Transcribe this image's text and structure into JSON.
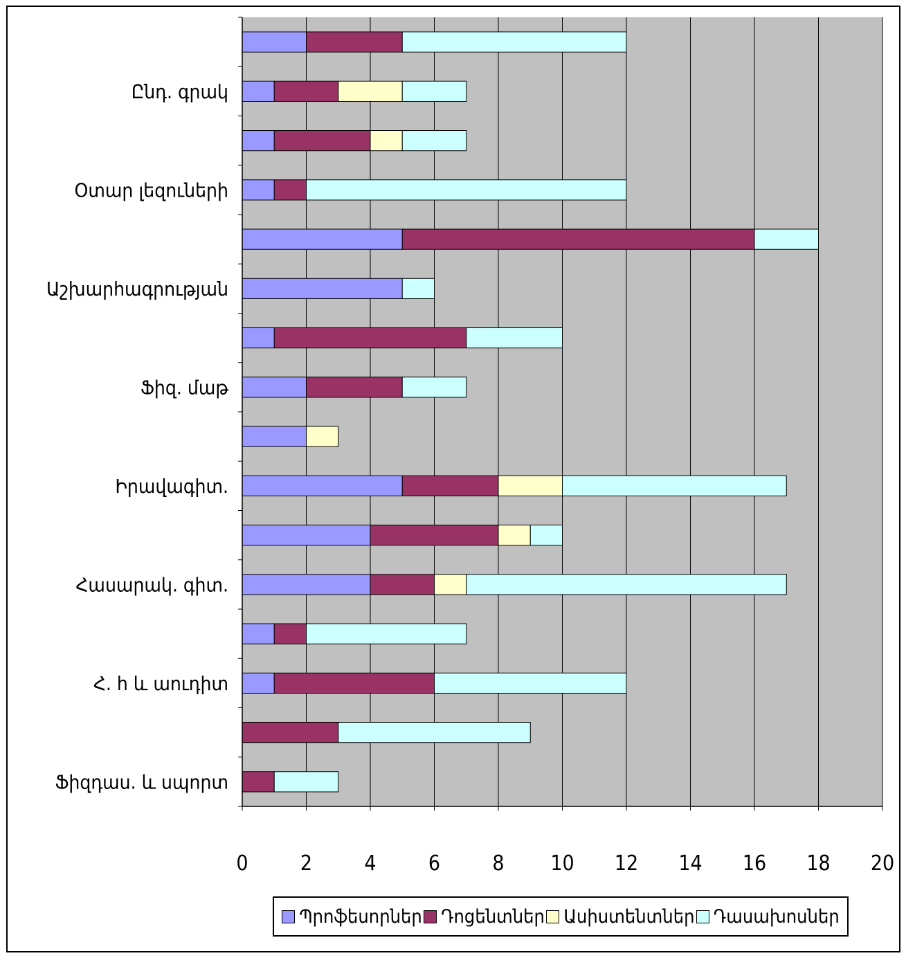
{
  "chart_data": {
    "type": "bar",
    "orientation": "horizontal",
    "stacked": true,
    "categories": [
      "Ֆիզդաս. և սպորտ",
      "",
      "Հ. h և աուդիտ",
      "",
      "Հասարակ. գիտ.",
      "",
      "Իրավագիտ.",
      "",
      "Ֆիզ. մաթ",
      "",
      "Աշխարհագրության",
      "",
      "Օտար լեզուների",
      "",
      "Ընդ. գրակ",
      ""
    ],
    "series": [
      {
        "name": "Պրոֆեսորներ",
        "color": "#9999ff",
        "values": [
          0,
          0,
          1,
          1,
          4,
          4,
          5,
          2,
          2,
          1,
          5,
          5,
          1,
          1,
          1,
          2
        ]
      },
      {
        "name": "Դոցենտներ",
        "color": "#993366",
        "values": [
          1,
          3,
          5,
          1,
          2,
          4,
          3,
          0,
          3,
          6,
          0,
          11,
          1,
          3,
          2,
          3
        ]
      },
      {
        "name": "Ասիստենտներ",
        "color": "#ffffcc",
        "values": [
          0,
          0,
          0,
          0,
          1,
          1,
          2,
          1,
          0,
          0,
          0,
          0,
          0,
          1,
          2,
          0
        ]
      },
      {
        "name": "Դասախոսներ",
        "color": "#ccffff",
        "values": [
          2,
          6,
          6,
          5,
          10,
          1,
          7,
          0,
          2,
          3,
          1,
          2,
          10,
          2,
          2,
          7
        ]
      }
    ],
    "xlim": [
      0,
      20
    ],
    "xticks": [
      0,
      2,
      4,
      6,
      8,
      10,
      12,
      14,
      16,
      18,
      20
    ],
    "grid": true,
    "plot_background": "#c0c0c0",
    "legend_position": "bottom"
  }
}
